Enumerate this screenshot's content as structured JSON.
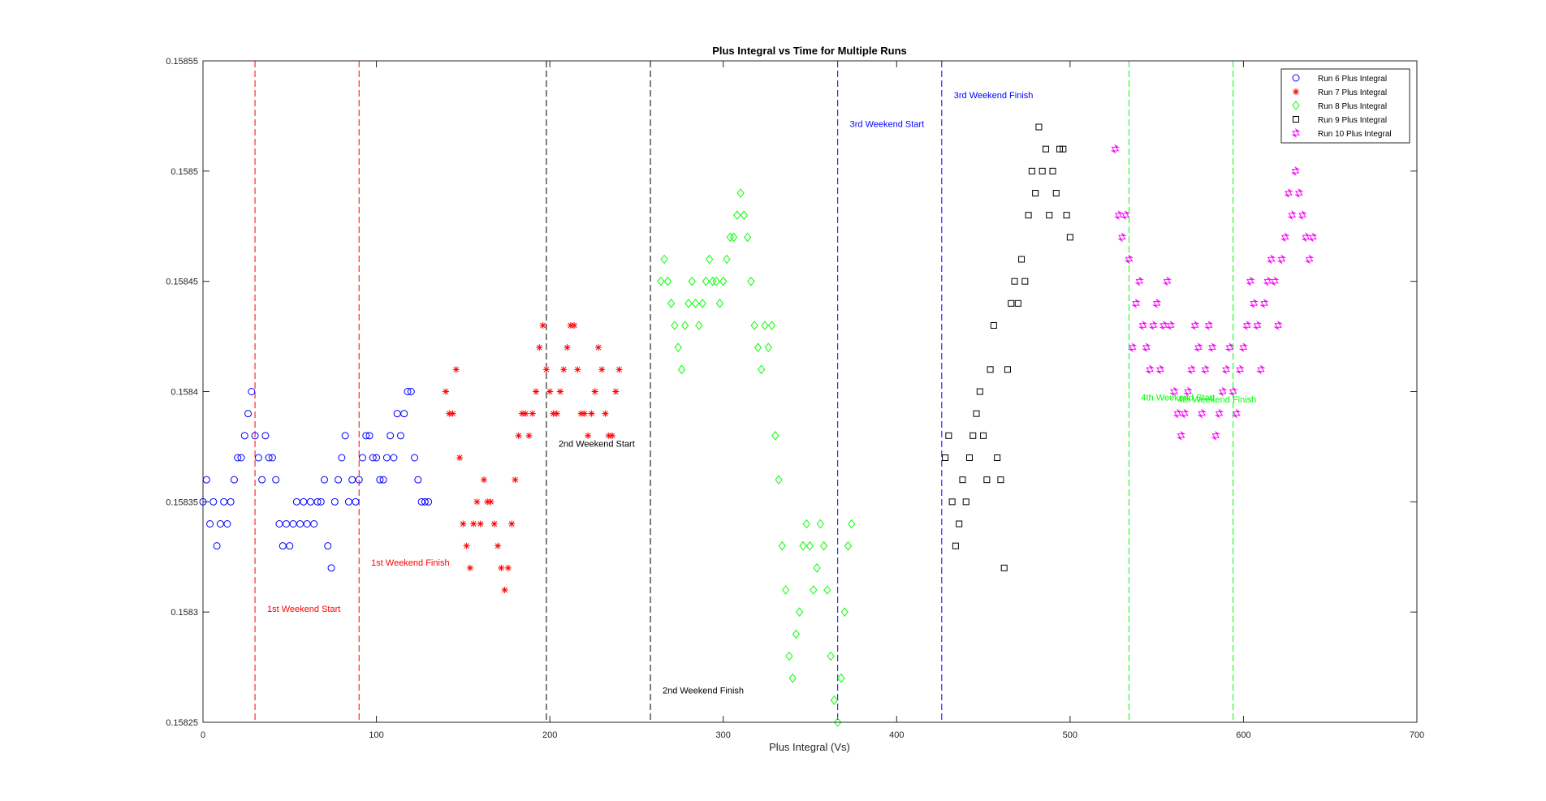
{
  "chart_data": {
    "type": "scatter",
    "title": "Plus Integral vs Time for Multiple Runs",
    "xlabel": "Plus Integral (Vs)",
    "ylabel": "",
    "xlim": [
      0,
      700
    ],
    "ylim": [
      0.15825,
      0.15855
    ],
    "xticks": [
      0,
      100,
      200,
      300,
      400,
      500,
      600,
      700
    ],
    "xtick_labels": [
      "0",
      "100",
      "200",
      "300",
      "400",
      "500",
      "600",
      "700"
    ],
    "yticks": [
      0.15825,
      0.1583,
      0.15835,
      0.1584,
      0.15845,
      0.1585,
      0.15855
    ],
    "ytick_labels": [
      "0.15825",
      "0.1583",
      "0.15835",
      "0.1584",
      "0.15845",
      "0.1585",
      "0.15855"
    ],
    "grid": false,
    "legend_position": "top-right",
    "series": [
      {
        "name": "Run 6 Plus Integral",
        "color": "#0000ff",
        "marker": "circle",
        "x": [
          0,
          2,
          4,
          6,
          8,
          10,
          12,
          14,
          16,
          18,
          20,
          22,
          24,
          26,
          28,
          30,
          32,
          34,
          36,
          38,
          40,
          42,
          44,
          46,
          48,
          50,
          52,
          54,
          56,
          58,
          60,
          62,
          64,
          66,
          68,
          70,
          72,
          74,
          76,
          78,
          80,
          82,
          84,
          86,
          88,
          90,
          92,
          94,
          96,
          98,
          100,
          102,
          104,
          106,
          108,
          110,
          112,
          114,
          116,
          118,
          120,
          122,
          124,
          126,
          128,
          130
        ],
        "y": [
          0.15835,
          0.15836,
          0.15834,
          0.15835,
          0.15833,
          0.15834,
          0.15835,
          0.15834,
          0.15835,
          0.15836,
          0.15837,
          0.15837,
          0.15838,
          0.15839,
          0.1584,
          0.15838,
          0.15837,
          0.15836,
          0.15838,
          0.15837,
          0.15837,
          0.15836,
          0.15834,
          0.15833,
          0.15834,
          0.15833,
          0.15834,
          0.15835,
          0.15834,
          0.15835,
          0.15834,
          0.15835,
          0.15834,
          0.15835,
          0.15835,
          0.15836,
          0.15833,
          0.15832,
          0.15835,
          0.15836,
          0.15837,
          0.15838,
          0.15835,
          0.15836,
          0.15835,
          0.15836,
          0.15837,
          0.15838,
          0.15838,
          0.15837,
          0.15837,
          0.15836,
          0.15836,
          0.15837,
          0.15838,
          0.15837,
          0.15839,
          0.15838,
          0.15839,
          0.1584,
          0.1584,
          0.15837,
          0.15836,
          0.15835,
          0.15835,
          0.15835
        ]
      },
      {
        "name": "Run 7 Plus Integral",
        "color": "#ff0000",
        "marker": "asterisk",
        "x": [
          140,
          142,
          144,
          146,
          148,
          150,
          152,
          154,
          156,
          158,
          160,
          162,
          164,
          166,
          168,
          170,
          172,
          174,
          176,
          178,
          180,
          182,
          184,
          186,
          188,
          190,
          192,
          194,
          196,
          198,
          200,
          202,
          204,
          206,
          208,
          210,
          212,
          214,
          216,
          218,
          220,
          222,
          224,
          226,
          228,
          230,
          232,
          234,
          236,
          238,
          240
        ],
        "y": [
          0.1584,
          0.15839,
          0.15839,
          0.15841,
          0.15837,
          0.15834,
          0.15833,
          0.15832,
          0.15834,
          0.15835,
          0.15834,
          0.15836,
          0.15835,
          0.15835,
          0.15834,
          0.15833,
          0.15832,
          0.15831,
          0.15832,
          0.15834,
          0.15836,
          0.15838,
          0.15839,
          0.15839,
          0.15838,
          0.15839,
          0.1584,
          0.15842,
          0.15843,
          0.15841,
          0.1584,
          0.15839,
          0.15839,
          0.1584,
          0.15841,
          0.15842,
          0.15843,
          0.15843,
          0.15841,
          0.15839,
          0.15839,
          0.15838,
          0.15839,
          0.1584,
          0.15842,
          0.15841,
          0.15839,
          0.15838,
          0.15838,
          0.1584,
          0.15841
        ]
      },
      {
        "name": "Run 8 Plus Integral",
        "color": "#00ff00",
        "marker": "diamond",
        "x": [
          264,
          266,
          268,
          270,
          272,
          274,
          276,
          278,
          280,
          282,
          284,
          286,
          288,
          290,
          292,
          294,
          296,
          298,
          300,
          302,
          304,
          306,
          308,
          310,
          312,
          314,
          316,
          318,
          320,
          322,
          324,
          326,
          328,
          330,
          332,
          334,
          336,
          338,
          340,
          342,
          344,
          346,
          348,
          350,
          352,
          354,
          356,
          358,
          360,
          362,
          364,
          366,
          368,
          370,
          372,
          374
        ],
        "y": [
          0.15845,
          0.15846,
          0.15845,
          0.15844,
          0.15843,
          0.15842,
          0.15841,
          0.15843,
          0.15844,
          0.15845,
          0.15844,
          0.15843,
          0.15844,
          0.15845,
          0.15846,
          0.15845,
          0.15845,
          0.15844,
          0.15845,
          0.15846,
          0.15847,
          0.15847,
          0.15848,
          0.15849,
          0.15848,
          0.15847,
          0.15845,
          0.15843,
          0.15842,
          0.15841,
          0.15843,
          0.15842,
          0.15843,
          0.15838,
          0.15836,
          0.15833,
          0.15831,
          0.15828,
          0.15827,
          0.15829,
          0.1583,
          0.15833,
          0.15834,
          0.15833,
          0.15831,
          0.15832,
          0.15834,
          0.15833,
          0.15831,
          0.15828,
          0.15826,
          0.15825,
          0.15827,
          0.1583,
          0.15833,
          0.15834
        ]
      },
      {
        "name": "Run 9 Plus Integral",
        "color": "#000000",
        "marker": "square",
        "x": [
          428,
          430,
          432,
          434,
          436,
          438,
          440,
          442,
          444,
          446,
          448,
          450,
          452,
          454,
          456,
          458,
          460,
          462,
          464,
          466,
          468,
          470,
          472,
          474,
          476,
          478,
          480,
          482,
          484,
          486,
          488,
          490,
          492,
          494,
          496,
          498,
          500
        ],
        "y": [
          0.15837,
          0.15838,
          0.15835,
          0.15833,
          0.15834,
          0.15836,
          0.15835,
          0.15837,
          0.15838,
          0.15839,
          0.1584,
          0.15838,
          0.15836,
          0.15841,
          0.15843,
          0.15837,
          0.15836,
          0.15832,
          0.15841,
          0.15844,
          0.15845,
          0.15844,
          0.15846,
          0.15845,
          0.15848,
          0.1585,
          0.15849,
          0.15852,
          0.1585,
          0.15851,
          0.15848,
          0.1585,
          0.15849,
          0.15851,
          0.15851,
          0.15848,
          0.15847
        ]
      },
      {
        "name": "Run 10 Plus Integral",
        "color": "#ff00ff",
        "marker": "hexagram",
        "x": [
          526,
          528,
          530,
          532,
          534,
          536,
          538,
          540,
          542,
          544,
          546,
          548,
          550,
          552,
          554,
          556,
          558,
          560,
          562,
          564,
          566,
          568,
          570,
          572,
          574,
          576,
          578,
          580,
          582,
          584,
          586,
          588,
          590,
          592,
          594,
          596,
          598,
          600,
          602,
          604,
          606,
          608,
          610,
          612,
          614,
          616,
          618,
          620,
          622,
          624,
          626,
          628,
          630,
          632,
          634,
          636,
          638,
          640
        ],
        "y": [
          0.15851,
          0.15848,
          0.15847,
          0.15848,
          0.15846,
          0.15842,
          0.15844,
          0.15845,
          0.15843,
          0.15842,
          0.15841,
          0.15843,
          0.15844,
          0.15841,
          0.15843,
          0.15845,
          0.15843,
          0.1584,
          0.15839,
          0.15838,
          0.15839,
          0.1584,
          0.15841,
          0.15843,
          0.15842,
          0.15839,
          0.15841,
          0.15843,
          0.15842,
          0.15838,
          0.15839,
          0.1584,
          0.15841,
          0.15842,
          0.1584,
          0.15839,
          0.15841,
          0.15842,
          0.15843,
          0.15845,
          0.15844,
          0.15843,
          0.15841,
          0.15844,
          0.15845,
          0.15846,
          0.15845,
          0.15843,
          0.15846,
          0.15847,
          0.15849,
          0.15848,
          0.1585,
          0.15849,
          0.15848,
          0.15847,
          0.15846,
          0.15847
        ]
      }
    ],
    "vlines": [
      {
        "x": 30,
        "color": "#ff0000",
        "label": "1st Weekend Start",
        "label_x": 37,
        "label_y": 0.1583,
        "label_color": "#ff0000"
      },
      {
        "x": 90,
        "color": "#ff0000",
        "label": "1st Weekend Finish",
        "label_x": 97,
        "label_y": 0.158321,
        "label_color": "#ff0000"
      },
      {
        "x": 198,
        "color": "#000000",
        "label": "2nd Weekend Start",
        "label_x": 205,
        "label_y": 0.158375,
        "label_color": "#000000"
      },
      {
        "x": 258,
        "color": "#000000",
        "label": "2nd Weekend Finish",
        "label_x": 265,
        "label_y": 0.158263,
        "label_color": "#000000"
      },
      {
        "x": 366,
        "color": "#0000ff",
        "label": "3rd Weekend Start",
        "label_x": 373,
        "label_y": 0.15852,
        "label_color": "#0000ff"
      },
      {
        "x": 426,
        "color": "#0000ff",
        "label": "3rd Weekend Finish",
        "label_x": 433,
        "label_y": 0.158533,
        "label_color": "#0000ff"
      },
      {
        "x": 534,
        "color": "#00ff00",
        "label": "4th Weekend Start",
        "label_x": 541,
        "label_y": 0.158396,
        "label_color": "#00ff00"
      },
      {
        "x": 594,
        "color": "#00ff00",
        "label": "4th Weekend Finish",
        "label_x": 562,
        "label_y": 0.158395,
        "label_color": "#00ff00"
      }
    ]
  }
}
